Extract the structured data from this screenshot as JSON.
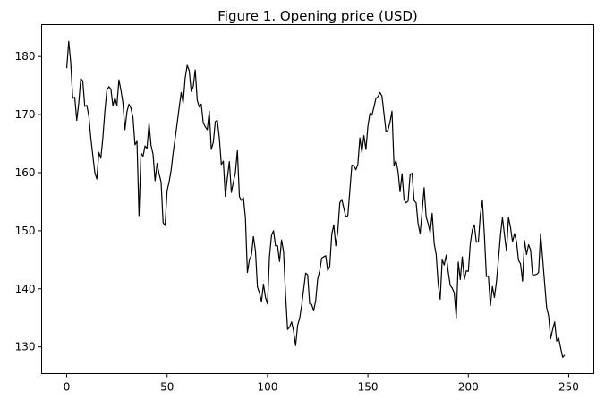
{
  "chart_data": {
    "type": "line",
    "title": "Figure 1. Opening price (USD)",
    "xlabel": "",
    "ylabel": "",
    "xlim": [
      -12.5,
      262.5
    ],
    "ylim": [
      125.4,
      185.5
    ],
    "x_ticks": [
      0,
      50,
      100,
      150,
      200,
      250
    ],
    "y_ticks": [
      130,
      140,
      150,
      160,
      170,
      180
    ],
    "grid": false,
    "legend": "none",
    "line_color": "#000000",
    "series": [
      {
        "values": [
          178.0,
          182.6,
          179.0,
          172.8,
          173.0,
          169.0,
          172.0,
          176.2,
          175.8,
          171.4,
          171.6,
          169.8,
          166.0,
          163.0,
          160.0,
          158.9,
          163.5,
          162.5,
          166.0,
          170.6,
          174.2,
          174.8,
          174.4,
          171.5,
          172.9,
          171.6,
          176.0,
          174.2,
          172.0,
          167.4,
          170.5,
          171.8,
          171.1,
          169.5,
          164.8,
          165.4,
          152.6,
          163.4,
          162.8,
          164.6,
          164.2,
          168.5,
          164.7,
          163.2,
          158.6,
          161.6,
          159.8,
          158.4,
          151.4,
          150.9,
          156.9,
          158.4,
          160.4,
          163.4,
          165.9,
          168.5,
          171.2,
          173.8,
          172.0,
          176.3,
          178.5,
          177.6,
          174.0,
          174.8,
          177.7,
          172.5,
          171.3,
          171.8,
          168.6,
          167.9,
          167.4,
          170.6,
          164.0,
          165.2,
          168.8,
          169.0,
          166.0,
          161.4,
          162.0,
          155.9,
          159.1,
          161.9,
          156.6,
          158.4,
          160.0,
          163.8,
          155.9,
          155.2,
          155.7,
          152.2,
          142.8,
          145.0,
          145.8,
          149.0,
          146.5,
          140.3,
          139.3,
          137.8,
          140.8,
          138.5,
          137.4,
          145.6,
          149.2,
          150.0,
          147.4,
          147.4,
          144.7,
          148.4,
          146.4,
          139.0,
          133.0,
          133.4,
          134.3,
          132.7,
          130.2,
          133.7,
          134.9,
          137.1,
          139.9,
          142.7,
          142.4,
          137.4,
          137.3,
          136.2,
          138.0,
          141.7,
          143.1,
          145.3,
          145.5,
          145.7,
          143.1,
          143.9,
          149.4,
          151.0,
          147.4,
          149.9,
          154.8,
          155.4,
          153.9,
          152.4,
          152.6,
          156.9,
          161.3,
          161.2,
          160.5,
          161.4,
          166.0,
          163.5,
          166.4,
          164.0,
          168.0,
          170.2,
          169.9,
          171.3,
          172.8,
          173.1,
          173.8,
          173.2,
          170.2,
          167.1,
          167.3,
          168.7,
          170.6,
          161.2,
          162.1,
          160.2,
          156.7,
          159.8,
          155.3,
          154.8,
          155.1,
          159.6,
          159.9,
          155.2,
          154.8,
          151.2,
          149.5,
          153.3,
          157.4,
          152.4,
          151.2,
          149.7,
          153.0,
          147.8,
          145.9,
          140.8,
          138.2,
          145.0,
          144.1,
          145.8,
          142.9,
          140.6,
          140.1,
          139.3,
          135.0,
          144.6,
          141.6,
          145.5,
          141.6,
          143.1,
          143.0,
          147.8,
          150.2,
          151.0,
          148.0,
          148.1,
          152.8,
          155.2,
          149.3,
          142.1,
          142.2,
          137.1,
          140.4,
          138.5,
          141.2,
          145.0,
          149.2,
          152.3,
          149.3,
          146.5,
          152.3,
          150.6,
          148.1,
          149.5,
          148.1,
          144.9,
          144.3,
          141.3,
          148.3,
          145.9,
          147.6,
          146.7,
          142.4,
          142.4,
          142.5,
          142.8,
          149.5,
          145.3,
          141.0,
          136.8,
          135.3,
          131.4,
          133.0,
          134.3,
          131.0,
          131.5,
          129.8,
          128.2,
          128.6
        ]
      }
    ]
  }
}
